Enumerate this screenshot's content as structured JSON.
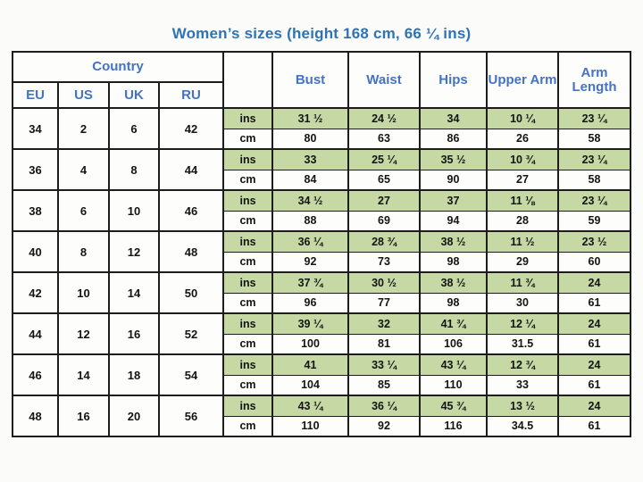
{
  "chart_data": {
    "type": "table",
    "title": "Women’s sizes (height 168 cm, 66 ¼ ins)",
    "header": {
      "country_group_label": "Country",
      "country_cols": [
        "EU",
        "US",
        "UK",
        "RU"
      ],
      "unit_labels": [
        "ins",
        "cm"
      ],
      "measure_cols": [
        "Bust",
        "Waist",
        "Hips",
        "Upper Arm",
        "Arm Length"
      ]
    },
    "sizes": [
      {
        "eu": "34",
        "us": "2",
        "uk": "6",
        "ru": "42",
        "ins": [
          "31 ½",
          "24 ½",
          "34",
          "10 ¼",
          "23 ¼"
        ],
        "cm": [
          "80",
          "63",
          "86",
          "26",
          "58"
        ]
      },
      {
        "eu": "36",
        "us": "4",
        "uk": "8",
        "ru": "44",
        "ins": [
          "33",
          "25 ¼",
          "35 ½",
          "10 ¾",
          "23 ¼"
        ],
        "cm": [
          "84",
          "65",
          "90",
          "27",
          "58"
        ]
      },
      {
        "eu": "38",
        "us": "6",
        "uk": "10",
        "ru": "46",
        "ins": [
          "34 ½",
          "27",
          "37",
          "11 ⅛",
          "23 ¼"
        ],
        "cm": [
          "88",
          "69",
          "94",
          "28",
          "59"
        ]
      },
      {
        "eu": "40",
        "us": "8",
        "uk": "12",
        "ru": "48",
        "ins": [
          "36 ¼",
          "28 ¾",
          "38 ½",
          "11 ½",
          "23 ½"
        ],
        "cm": [
          "92",
          "73",
          "98",
          "29",
          "60"
        ]
      },
      {
        "eu": "42",
        "us": "10",
        "uk": "14",
        "ru": "50",
        "ins": [
          "37 ¾",
          "30 ½",
          "38 ½",
          "11 ¾",
          "24"
        ],
        "cm": [
          "96",
          "77",
          "98",
          "30",
          "61"
        ]
      },
      {
        "eu": "44",
        "us": "12",
        "uk": "16",
        "ru": "52",
        "ins": [
          "39 ¼",
          "32",
          "41 ¾",
          "12 ¼",
          "24"
        ],
        "cm": [
          "100",
          "81",
          "106",
          "31.5",
          "61"
        ]
      },
      {
        "eu": "46",
        "us": "14",
        "uk": "18",
        "ru": "54",
        "ins": [
          "41",
          "33 ¼",
          "43 ¼",
          "12 ¾",
          "24"
        ],
        "cm": [
          "104",
          "85",
          "110",
          "33",
          "61"
        ]
      },
      {
        "eu": "48",
        "us": "16",
        "uk": "20",
        "ru": "56",
        "ins": [
          "43 ¼",
          "36 ¼",
          "45 ¾",
          "13 ½",
          "24"
        ],
        "cm": [
          "110",
          "92",
          "116",
          "34.5",
          "61"
        ]
      }
    ]
  },
  "colors": {
    "title_blue": "#2e74b5",
    "header_blue": "#4472c4",
    "row_green": "#c6d9a4",
    "border": "#1d1d1d"
  }
}
